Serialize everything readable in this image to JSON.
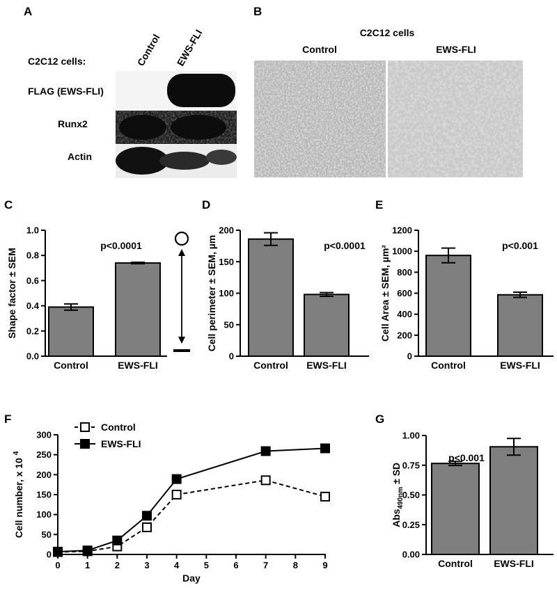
{
  "panels": {
    "A": {
      "letter": "A",
      "row_header": "C2C12 cells:",
      "col_labels": [
        "Control",
        "EWS-FLI"
      ],
      "blot_labels": [
        "FLAG (EWS-FLI)",
        "Runx2",
        "Actin"
      ]
    },
    "B": {
      "letter": "B",
      "title": "C2C12 cells",
      "image_labels": [
        "Control",
        "EWS-FLI"
      ]
    },
    "C": {
      "letter": "C",
      "pvalue": "p<0.0001"
    },
    "D": {
      "letter": "D",
      "pvalue": "p<0.0001"
    },
    "E": {
      "letter": "E",
      "pvalue": "p<0.001"
    },
    "F": {
      "letter": "F"
    },
    "G": {
      "letter": "G",
      "pvalue": "p<0.001"
    }
  },
  "colors": {
    "bar": "#7f7f7f",
    "axis": "#000000",
    "blot_bg": "#f2f2f2",
    "micro_bg": "#c8c8c8"
  },
  "chart_data": [
    {
      "id": "C",
      "type": "bar",
      "categories": [
        "Control",
        "EWS-FLI"
      ],
      "values": [
        0.39,
        0.74
      ],
      "errors": [
        0.025,
        0.006
      ],
      "ylabel": "Shape factor ± SEM",
      "ylim": [
        0,
        1.0
      ],
      "yticks": [
        "0.0",
        "0.2",
        "0.4",
        "0.6",
        "0.8",
        "1.0"
      ],
      "pvalue": "p<0.0001"
    },
    {
      "id": "D",
      "type": "bar",
      "categories": [
        "Control",
        "EWS-FLI"
      ],
      "values": [
        186,
        98
      ],
      "errors": [
        10,
        3
      ],
      "ylabel": "Cell perimeter ± SEM, µm",
      "ylim": [
        0,
        200
      ],
      "yticks": [
        "0",
        "50",
        "100",
        "150",
        "200"
      ],
      "pvalue": "p<0.0001"
    },
    {
      "id": "E",
      "type": "bar",
      "categories": [
        "Control",
        "EWS-FLI"
      ],
      "values": [
        960,
        585
      ],
      "errors": [
        70,
        25
      ],
      "ylabel": "Cell Area ± SEM, µm²",
      "ylim": [
        0,
        1200
      ],
      "yticks": [
        "0",
        "200",
        "400",
        "600",
        "800",
        "1000",
        "1200"
      ],
      "pvalue": "p<0.001"
    },
    {
      "id": "F",
      "type": "line",
      "x": [
        0,
        1,
        2,
        3,
        4,
        7,
        9
      ],
      "series": [
        {
          "name": "Control",
          "values": [
            6,
            8,
            20,
            68,
            150,
            186,
            145
          ]
        },
        {
          "name": "EWS-FLI",
          "values": [
            7,
            10,
            35,
            97,
            189,
            259,
            266
          ]
        }
      ],
      "xlabel": "Day",
      "ylabel": "Cell number, x 10⁴",
      "xlim": [
        0,
        9
      ],
      "xticks": [
        "0",
        "1",
        "2",
        "3",
        "4",
        "5",
        "6",
        "7",
        "8",
        "9"
      ],
      "ylim": [
        0,
        300
      ],
      "yticks": [
        "0",
        "50",
        "100",
        "150",
        "200",
        "250",
        "300"
      ],
      "legend": "top-left"
    },
    {
      "id": "G",
      "type": "bar",
      "categories": [
        "Control",
        "EWS-FLI"
      ],
      "values": [
        0.765,
        0.905
      ],
      "errors": [
        0.017,
        0.07
      ],
      "ylabel": "Abs490nm ± SD",
      "ylim": [
        0,
        1.0
      ],
      "yticks": [
        "0.00",
        "0.25",
        "0.50",
        "0.75",
        "1.00"
      ],
      "pvalue": "p<0.001"
    }
  ]
}
